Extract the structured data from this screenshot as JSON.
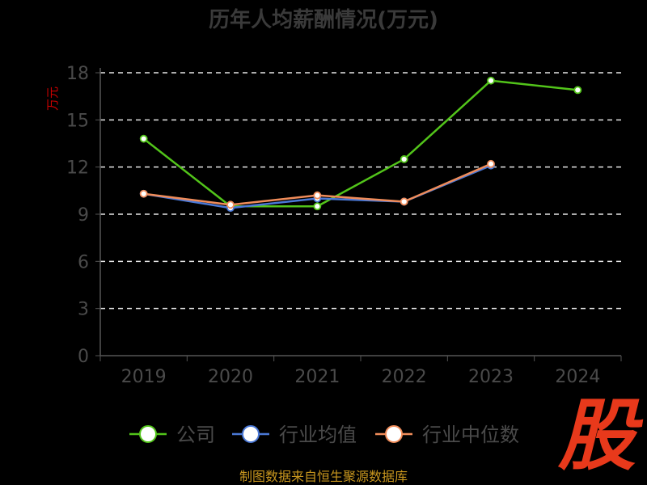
{
  "chart_data": {
    "type": "line",
    "title": "历年人均薪酬情况(万元)",
    "ylabel": "万元",
    "xlabel": "",
    "categories": [
      "2019",
      "2020",
      "2021",
      "2022",
      "2023",
      "2024"
    ],
    "ylim": [
      0,
      18
    ],
    "yticks": [
      0,
      3,
      6,
      9,
      12,
      15,
      18
    ],
    "grid": true,
    "legend_position": "bottom",
    "series": [
      {
        "name": "公司",
        "color": "#52c41a",
        "values": [
          13.8,
          9.5,
          9.5,
          12.5,
          17.5,
          16.9
        ]
      },
      {
        "name": "行业均值",
        "color": "#4a78d6",
        "values": [
          10.3,
          9.4,
          10.0,
          9.8,
          12.1,
          null
        ]
      },
      {
        "name": "行业中位数",
        "color": "#f08c5a",
        "values": [
          10.3,
          9.6,
          10.2,
          9.8,
          12.2,
          null
        ]
      }
    ]
  },
  "source_text": "制图数据来自恒生聚源数据库",
  "watermark_text": "股"
}
